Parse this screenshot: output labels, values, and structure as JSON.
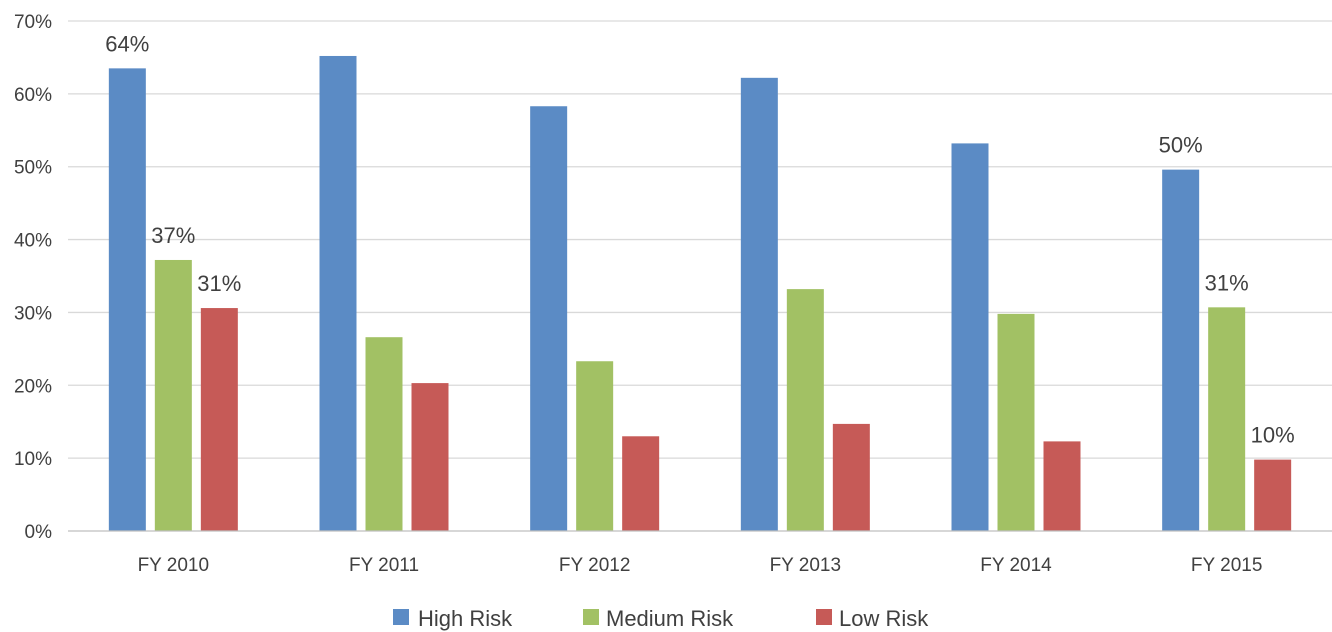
{
  "chart_data": {
    "type": "bar",
    "title": "",
    "xlabel": "",
    "ylabel": "",
    "ylim": [
      0,
      70
    ],
    "y_unit": "%",
    "y_ticks": [
      0,
      10,
      20,
      30,
      40,
      50,
      60,
      70
    ],
    "y_tick_labels": [
      "0%",
      "10%",
      "20%",
      "30%",
      "40%",
      "50%",
      "60%",
      "70%"
    ],
    "grid": true,
    "legend_position": "bottom",
    "categories": [
      "FY 2010",
      "FY 2011",
      "FY 2012",
      "FY 2013",
      "FY 2014",
      "FY 2015"
    ],
    "series": [
      {
        "name": "High Risk",
        "color": "#5b8bc5",
        "values": [
          63.5,
          65.2,
          58.3,
          62.2,
          53.2,
          49.6
        ]
      },
      {
        "name": "Medium Risk",
        "color": "#a2c164",
        "values": [
          37.2,
          26.6,
          23.3,
          33.2,
          29.8,
          30.7
        ]
      },
      {
        "name": "Low Risk",
        "color": "#c65a57",
        "values": [
          30.6,
          20.3,
          13.0,
          14.7,
          12.3,
          9.8
        ]
      }
    ],
    "data_labels": [
      {
        "series": 0,
        "category": 0,
        "text": "64%"
      },
      {
        "series": 1,
        "category": 0,
        "text": "37%"
      },
      {
        "series": 2,
        "category": 0,
        "text": "31%"
      },
      {
        "series": 0,
        "category": 5,
        "text": "50%"
      },
      {
        "series": 1,
        "category": 5,
        "text": "31%"
      },
      {
        "series": 2,
        "category": 5,
        "text": "10%"
      }
    ]
  }
}
